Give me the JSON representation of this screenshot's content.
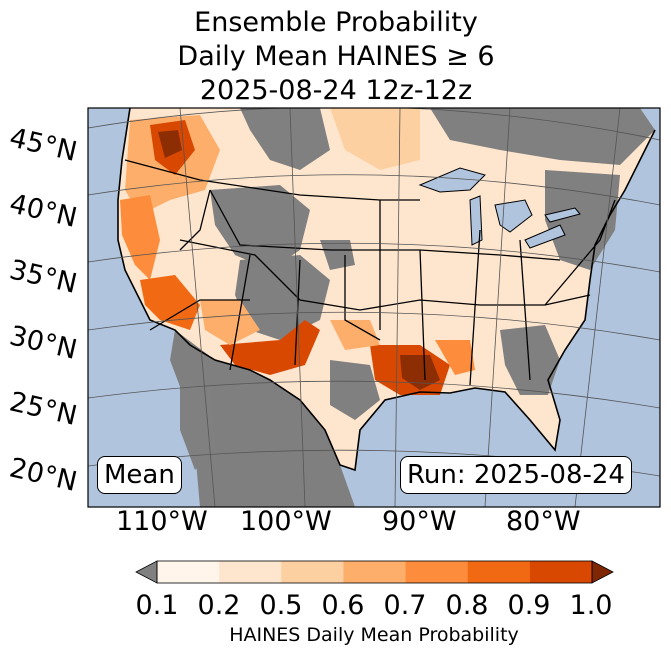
{
  "title": {
    "line1": "Ensemble Probability",
    "line2": "Daily Mean HAINES ≥ 6",
    "line3": "2025-08-24 12z-12z"
  },
  "lat_labels": [
    "45°N",
    "40°N",
    "35°N",
    "30°N",
    "25°N",
    "20°N"
  ],
  "lon_labels": [
    "110°W",
    "100°W",
    "90°W",
    "80°W"
  ],
  "boxes": {
    "left": "Mean",
    "right": "Run: 2025-08-24"
  },
  "colorbar": {
    "ticks": [
      "0.1",
      "0.2",
      "0.5",
      "0.6",
      "0.7",
      "0.8",
      "0.9",
      "1.0"
    ],
    "label": "HAINES Daily Mean Probability",
    "colors": [
      "#fff5eb",
      "#fee6ce",
      "#fdd0a2",
      "#fdae6b",
      "#fd8d3c",
      "#f16913",
      "#d94801",
      "#8c2d04"
    ],
    "under_color": "#808080",
    "over_color": "#7f2704"
  },
  "colors": {
    "ocean": "#b0c4de",
    "no_data": "#808080"
  }
}
